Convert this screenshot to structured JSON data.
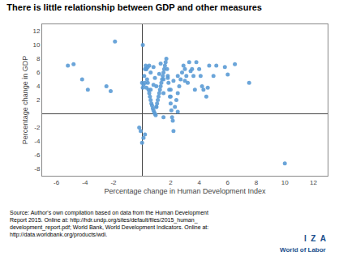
{
  "chart_data": {
    "type": "scatter",
    "title": "There is little relationship between GDP and other measures",
    "xlabel": "Percentage change in Human Development Index",
    "ylabel": "Percentage change in GDP",
    "xlim": [
      -7,
      13
    ],
    "ylim": [
      -9,
      13
    ],
    "xticks": [
      -6,
      -4,
      -2,
      2,
      4,
      6,
      8,
      10,
      12
    ],
    "yticks": [
      -8,
      -6,
      -4,
      -2,
      2,
      4,
      6,
      8,
      10,
      12
    ],
    "grid": false,
    "color": "#5b9bd5",
    "annotations": [
      "Source: Author's own compilation based on data from the Human Development\nReport 2015. Online at: http://hdr.undp.org/sites/default/files/2015_human_\ndevelopment_report.pdf; World Bank, World Development Indicators. Online at:\nhttp://data.worldbank.org/products/wdi.",
      "I  Z  A",
      "World of Labor"
    ],
    "x": [
      -5.2,
      -4.8,
      -4.2,
      -3.8,
      -2.5,
      -2.2,
      -1.9,
      0.0,
      0.05,
      0.1,
      0.15,
      0.2,
      0.25,
      0.3,
      0.35,
      0.4,
      0.45,
      0.5,
      0.55,
      0.6,
      0.65,
      0.7,
      0.75,
      0.8,
      0.85,
      0.9,
      0.95,
      1.0,
      1.05,
      1.1,
      1.15,
      1.2,
      1.25,
      1.3,
      1.35,
      1.4,
      1.45,
      1.5,
      1.55,
      1.6,
      1.65,
      1.7,
      1.75,
      1.8,
      1.85,
      1.9,
      1.95,
      2.0,
      2.05,
      2.1,
      2.15,
      2.2,
      2.3,
      2.4,
      2.5,
      2.6,
      2.7,
      2.8,
      2.9,
      3.0,
      3.1,
      3.2,
      3.3,
      3.5,
      3.6,
      3.7,
      3.8,
      4.0,
      4.1,
      4.2,
      4.3,
      4.5,
      4.7,
      5.0,
      5.2,
      6.0,
      6.5,
      7.5,
      10.0,
      -0.1,
      0.05,
      0.1,
      0.2,
      0.3,
      0.5,
      0.6,
      0.8,
      1.0,
      1.2,
      1.5,
      2.0,
      2.5,
      0.3,
      0.8,
      1.5,
      2.0,
      0.0,
      0.2,
      1.0,
      1.5,
      2.5,
      3.0,
      -0.2,
      0.4,
      0.9,
      1.3,
      2.2,
      3.4,
      4.6,
      5.8,
      0.6,
      1.8
    ],
    "values": [
      7.0,
      7.2,
      5.0,
      3.5,
      4.0,
      3.3,
      10.5,
      4.5,
      3.8,
      4.2,
      5.5,
      6.5,
      7.0,
      6.5,
      5.0,
      4.5,
      3.5,
      3.0,
      2.5,
      2.0,
      1.5,
      1.2,
      0.8,
      0.5,
      0.2,
      0.0,
      -0.2,
      1.0,
      1.5,
      2.0,
      2.5,
      3.0,
      3.5,
      4.0,
      4.5,
      5.0,
      5.5,
      6.0,
      6.5,
      7.0,
      7.5,
      8.0,
      6.5,
      5.5,
      4.5,
      3.5,
      2.5,
      1.5,
      0.5,
      -0.5,
      -1.0,
      -2.5,
      1.0,
      2.0,
      3.0,
      4.0,
      5.0,
      6.0,
      7.0,
      6.5,
      5.5,
      4.5,
      7.5,
      6.5,
      5.5,
      3.5,
      7.5,
      6.5,
      5.5,
      4.0,
      3.5,
      2.5,
      7.0,
      5.5,
      7.0,
      5.7,
      7.2,
      4.5,
      -7.2,
      -2.5,
      10.0,
      -3.5,
      4.5,
      3.8,
      7.0,
      3.5,
      6.8,
      4.0,
      5.8,
      5.0,
      2.5,
      0.3,
      6.5,
      4.2,
      3.0,
      3.5,
      -4.2,
      -3.0,
      1.0,
      -0.5,
      5.5,
      4.8,
      -2.0,
      6.8,
      5.2,
      7.3,
      4.8,
      6.2,
      3.8,
      6.8,
      6.0,
      5.2
    ]
  }
}
